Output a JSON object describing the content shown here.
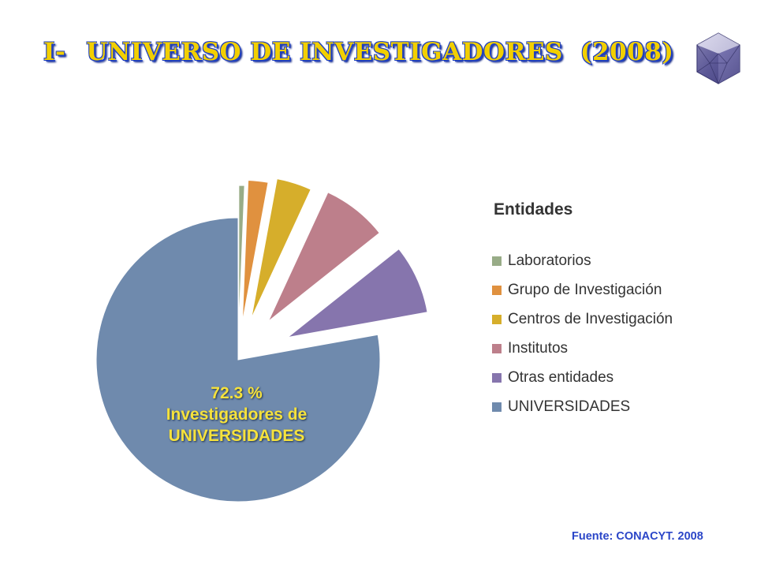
{
  "page": {
    "title_prefix": "I-",
    "title_main": "UNIVERSO DE INVESTIGADORES",
    "title_year": "(2008)",
    "source": "Fuente: CONACYT. 2008",
    "logo_icon": "crystal-gem-icon"
  },
  "chart_data": {
    "type": "pie",
    "title": "",
    "legend_title": "Entidades",
    "legend_position": "right",
    "exploded": true,
    "slices": [
      {
        "label": "Laboratorios",
        "value": 0.6,
        "color": "#98ac87"
      },
      {
        "label": "Grupo de Investigación",
        "value": 2.1,
        "color": "#e0913f"
      },
      {
        "label": "Centros de Investigación",
        "value": 3.7,
        "color": "#d6ae2b"
      },
      {
        "label": "Institutos",
        "value": 6.9,
        "color": "#bd7f8b"
      },
      {
        "label": "Otras entidades",
        "value": 7.3,
        "color": "#8675ad"
      },
      {
        "label": "UNIVERSIDADES",
        "value": 72.3,
        "color": "#6f8aad"
      }
    ],
    "annotation": {
      "value_text": "72.3 %",
      "line1": "Investigadores de",
      "line2": "UNIVERSIDADES"
    }
  }
}
